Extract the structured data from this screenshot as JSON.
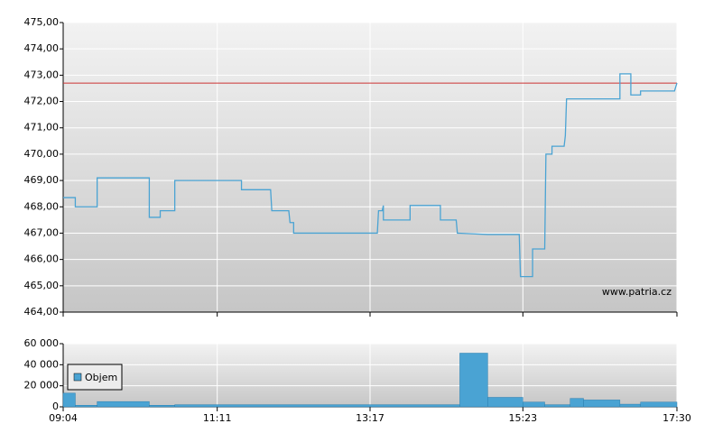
{
  "chart_data": [
    {
      "type": "line",
      "x": [
        "09:04",
        "09:14",
        "09:14",
        "09:32",
        "09:32",
        "10:15",
        "10:15",
        "10:24",
        "10:24",
        "10:36",
        "10:36",
        "11:31",
        "11:31",
        "11:55",
        "11:56",
        "12:10",
        "12:11",
        "12:14",
        "12:14",
        "13:23",
        "13:24",
        "13:27",
        "13:28",
        "13:28",
        "13:50",
        "13:50",
        "14:15",
        "14:15",
        "14:28",
        "14:29",
        "14:54",
        "15:20",
        "15:21",
        "15:31",
        "15:31",
        "15:41",
        "15:42",
        "15:47",
        "15:47",
        "15:57",
        "15:58",
        "15:59",
        "16:43",
        "16:43",
        "16:52",
        "16:52",
        "17:00",
        "17:00",
        "17:28",
        "17:30"
      ],
      "values": [
        468.35,
        468.35,
        468.0,
        468.0,
        469.1,
        469.1,
        467.6,
        467.6,
        467.85,
        467.85,
        469.0,
        469.0,
        468.65,
        468.65,
        467.85,
        467.85,
        467.4,
        467.4,
        467.0,
        467.0,
        467.85,
        467.85,
        468.05,
        467.5,
        467.5,
        468.05,
        468.05,
        467.5,
        467.5,
        467.0,
        466.95,
        466.95,
        465.35,
        465.35,
        466.4,
        466.4,
        470.0,
        470.0,
        470.3,
        470.3,
        470.7,
        472.1,
        472.1,
        473.05,
        473.05,
        472.25,
        472.25,
        472.4,
        472.4,
        472.7
      ],
      "color": "#4aa3d3",
      "reference_line": 472.7,
      "reference_color": "#cc3333",
      "xlim": [
        "09:04",
        "17:30"
      ],
      "ylim": [
        464,
        475
      ],
      "yticks": [
        {
          "value": 464,
          "label": "464,00"
        },
        {
          "value": 465,
          "label": "465,00"
        },
        {
          "value": 466,
          "label": "466,00"
        },
        {
          "value": 467,
          "label": "467,00"
        },
        {
          "value": 468,
          "label": "468,00"
        },
        {
          "value": 469,
          "label": "469,00"
        },
        {
          "value": 470,
          "label": "470,00"
        },
        {
          "value": 471,
          "label": "471,00"
        },
        {
          "value": 472,
          "label": "472,00"
        },
        {
          "value": 473,
          "label": "473,00"
        },
        {
          "value": 474,
          "label": "474,00"
        },
        {
          "value": 475,
          "label": "475,00"
        }
      ],
      "annotation": "www.patria.cz",
      "grid": true
    },
    {
      "type": "bar",
      "series": [
        {
          "name": "Objem",
          "color": "#4aa3d3",
          "x": [
            "09:04",
            "09:14",
            "09:32",
            "10:15",
            "10:36",
            "14:31",
            "14:54",
            "15:23",
            "15:41",
            "16:02",
            "16:13",
            "16:43",
            "17:00"
          ],
          "values": [
            13000,
            1500,
            5000,
            1500,
            2000,
            51000,
            9000,
            4500,
            2000,
            8000,
            6500,
            2500,
            4500
          ]
        }
      ],
      "xlim": [
        "09:04",
        "17:30"
      ],
      "xticks": [
        "09:04",
        "11:11",
        "13:17",
        "15:23",
        "17:30"
      ],
      "ylim": [
        0,
        60000
      ],
      "yticks": [
        0,
        {
          "value": 20000,
          "label": "20 000"
        },
        {
          "value": 40000,
          "label": "40 000"
        },
        {
          "value": 60000,
          "label": "60 000"
        }
      ],
      "grid": true
    }
  ]
}
